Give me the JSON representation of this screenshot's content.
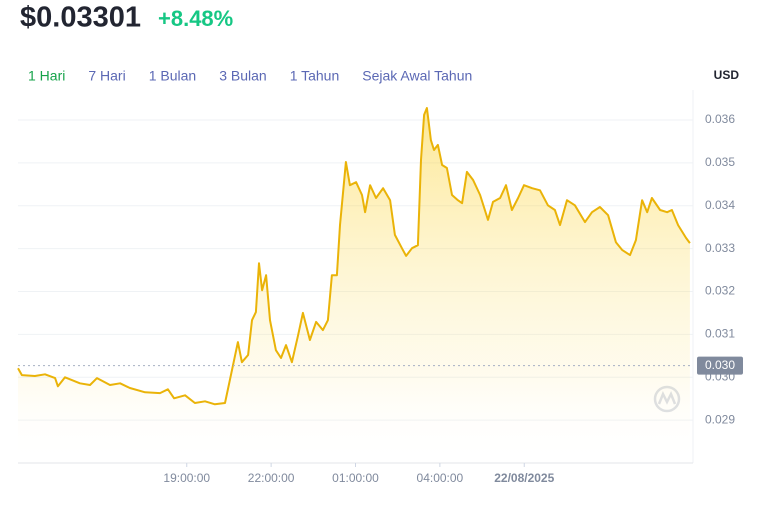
{
  "chart_data": {
    "type": "line",
    "title": "$0.03301",
    "subtitle": "+8.48%",
    "subtitle_color": "#16c784",
    "tabs": [
      "1 Hari",
      "7 Hari",
      "1 Bulan",
      "3 Bulan",
      "1 Tahun",
      "Sejak Awal Tahun"
    ],
    "selected_tab": 0,
    "tab_color": "#5b68b4",
    "selected_tab_color": "#16a34a",
    "y_axis_label": "USD",
    "color": "#eab308",
    "grid": true,
    "xlim": [
      0,
      24
    ],
    "xticks": [
      {
        "value": 6,
        "label": "19:00:00"
      },
      {
        "value": 9,
        "label": "22:00:00"
      },
      {
        "value": 12,
        "label": "01:00:00"
      },
      {
        "value": 15,
        "label": "04:00:00"
      },
      {
        "value": 18,
        "label": "22/08/2025"
      }
    ],
    "ylim": [
      0.028,
      0.0367
    ],
    "yticks": [
      0.029,
      {
        "value": 0.03,
        "label": "0.030"
      },
      0.031,
      0.032,
      0.033,
      0.034,
      0.035,
      0.036
    ],
    "reference_line": {
      "value": 0.03027,
      "label": "0.030"
    },
    "x": [
      0,
      0.14,
      0.6,
      0.96,
      1.32,
      1.42,
      1.67,
      2.2,
      2.56,
      2.81,
      3.27,
      3.63,
      3.98,
      4.52,
      5.05,
      5.33,
      5.55,
      5.94,
      6.29,
      6.65,
      7.0,
      7.36,
      7.61,
      7.82,
      7.96,
      8.18,
      8.32,
      8.46,
      8.57,
      8.68,
      8.82,
      8.96,
      9.17,
      9.35,
      9.53,
      9.74,
      9.96,
      10.13,
      10.38,
      10.6,
      10.84,
      11.02,
      11.16,
      11.34,
      11.45,
      11.66,
      11.8,
      12.02,
      12.23,
      12.34,
      12.52,
      12.73,
      12.98,
      13.23,
      13.4,
      13.65,
      13.8,
      14.01,
      14.22,
      14.33,
      14.44,
      14.54,
      14.68,
      14.79,
      14.93,
      15.08,
      15.25,
      15.43,
      15.64,
      15.79,
      15.96,
      16.18,
      16.43,
      16.71,
      16.89,
      17.14,
      17.35,
      17.56,
      17.78,
      17.99,
      18.28,
      18.56,
      18.84,
      19.09,
      19.27,
      19.52,
      19.8,
      20.16,
      20.41,
      20.69,
      20.98,
      21.26,
      21.48,
      21.76,
      21.97,
      22.19,
      22.37,
      22.54,
      22.83,
      23.08,
      23.25,
      23.47,
      23.75,
      23.89
    ],
    "values": [
      0.03021,
      0.03005,
      0.03003,
      0.03007,
      0.02998,
      0.02979,
      0.03,
      0.02986,
      0.02982,
      0.02998,
      0.02982,
      0.02986,
      0.02975,
      0.02965,
      0.02963,
      0.02972,
      0.02951,
      0.02958,
      0.0294,
      0.02944,
      0.02937,
      0.0294,
      0.03017,
      0.03082,
      0.03035,
      0.03052,
      0.03133,
      0.03152,
      0.03266,
      0.03203,
      0.03238,
      0.03133,
      0.03063,
      0.03045,
      0.03075,
      0.03035,
      0.03098,
      0.0315,
      0.03087,
      0.03129,
      0.0311,
      0.03133,
      0.03238,
      0.03238,
      0.03355,
      0.03502,
      0.03448,
      0.03455,
      0.03425,
      0.03385,
      0.03448,
      0.03418,
      0.03441,
      0.03413,
      0.03332,
      0.03301,
      0.03283,
      0.03301,
      0.03308,
      0.03507,
      0.03612,
      0.03628,
      0.03553,
      0.0353,
      0.03542,
      0.03495,
      0.03488,
      0.03425,
      0.03413,
      0.03406,
      0.03479,
      0.0346,
      0.03425,
      0.03367,
      0.03409,
      0.03418,
      0.03448,
      0.0339,
      0.03418,
      0.03448,
      0.03441,
      0.03436,
      0.03401,
      0.0339,
      0.03355,
      0.03413,
      0.03401,
      0.03362,
      0.03385,
      0.03397,
      0.03378,
      0.03315,
      0.03297,
      0.03285,
      0.0332,
      0.03413,
      0.03385,
      0.03418,
      0.0339,
      0.03385,
      0.0339,
      0.03355,
      0.03325,
      0.03313
    ]
  }
}
